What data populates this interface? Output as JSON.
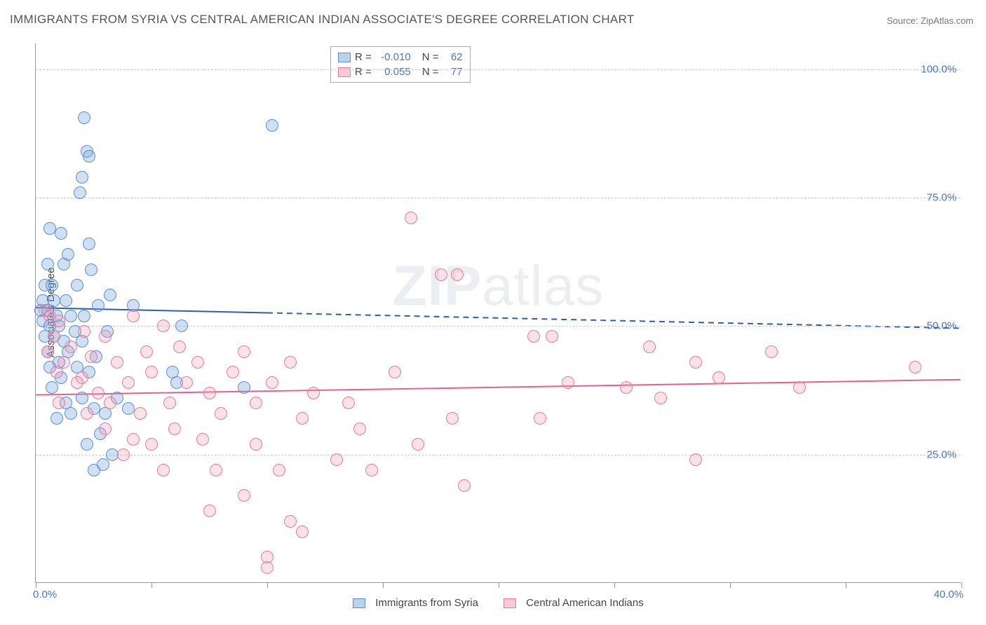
{
  "title": "IMMIGRANTS FROM SYRIA VS CENTRAL AMERICAN INDIAN ASSOCIATE'S DEGREE CORRELATION CHART",
  "source": "Source: ZipAtlas.com",
  "watermark_bold": "ZIP",
  "watermark_rest": "atlas",
  "y_axis_title": "Associate's Degree",
  "chart": {
    "type": "scatter",
    "xlim": [
      0,
      40
    ],
    "ylim": [
      0,
      105
    ],
    "x_ticks": [
      0,
      5,
      10,
      15,
      20,
      25,
      30,
      35,
      40
    ],
    "y_ticks": [
      25,
      50,
      75,
      100
    ],
    "y_tick_labels": [
      "25.0%",
      "50.0%",
      "75.0%",
      "100.0%"
    ],
    "x_label_min": "0.0%",
    "x_label_max": "40.0%",
    "background_color": "#ffffff",
    "grid_color": "#cccccc",
    "axis_color": "#999999",
    "marker_radius": 9,
    "series": [
      {
        "name": "Immigrants from Syria",
        "color_fill": "rgba(120,165,220,0.35)",
        "color_stroke": "#5c8fd6",
        "trend": {
          "y_start": 53.5,
          "y_end": 49.5,
          "solid_until_x": 10,
          "stroke": "#2b5fb0",
          "width": 2
        },
        "legend_top": {
          "r_label": "R =",
          "r_value": "-0.010",
          "n_label": "N =",
          "n_value": "62"
        },
        "points": [
          [
            2.1,
            90.5
          ],
          [
            10.2,
            89
          ],
          [
            2.2,
            84
          ],
          [
            2.3,
            83
          ],
          [
            2.0,
            79
          ],
          [
            1.9,
            76
          ],
          [
            0.6,
            69
          ],
          [
            1.1,
            68
          ],
          [
            2.3,
            66
          ],
          [
            1.4,
            64
          ],
          [
            0.5,
            62
          ],
          [
            1.2,
            62
          ],
          [
            2.4,
            61
          ],
          [
            0.4,
            58
          ],
          [
            0.7,
            58
          ],
          [
            1.8,
            58
          ],
          [
            3.2,
            56
          ],
          [
            0.3,
            55
          ],
          [
            0.8,
            55
          ],
          [
            1.3,
            55
          ],
          [
            2.7,
            54
          ],
          [
            4.2,
            54
          ],
          [
            0.2,
            53
          ],
          [
            0.5,
            53
          ],
          [
            0.9,
            52
          ],
          [
            1.5,
            52
          ],
          [
            2.1,
            52
          ],
          [
            0.3,
            51
          ],
          [
            0.6,
            50
          ],
          [
            1.0,
            50
          ],
          [
            1.7,
            49
          ],
          [
            3.1,
            49
          ],
          [
            6.3,
            50
          ],
          [
            0.4,
            48
          ],
          [
            0.8,
            48
          ],
          [
            1.2,
            47
          ],
          [
            2.0,
            47
          ],
          [
            0.5,
            45
          ],
          [
            1.4,
            45
          ],
          [
            2.6,
            44
          ],
          [
            1.0,
            43
          ],
          [
            0.6,
            42
          ],
          [
            1.8,
            42
          ],
          [
            2.3,
            41
          ],
          [
            5.9,
            41
          ],
          [
            1.1,
            40
          ],
          [
            0.7,
            38
          ],
          [
            6.1,
            39
          ],
          [
            2.0,
            36
          ],
          [
            9.0,
            38
          ],
          [
            3.5,
            36
          ],
          [
            1.3,
            35
          ],
          [
            2.5,
            34
          ],
          [
            4.0,
            34
          ],
          [
            1.5,
            33
          ],
          [
            0.9,
            32
          ],
          [
            3.0,
            33
          ],
          [
            2.8,
            29
          ],
          [
            2.2,
            27
          ],
          [
            3.3,
            25
          ],
          [
            2.5,
            22
          ],
          [
            2.9,
            23
          ]
        ]
      },
      {
        "name": "Central American Indians",
        "color_fill": "rgba(240,150,170,0.28)",
        "color_stroke": "#e97aa0",
        "trend": {
          "y_start": 36.5,
          "y_end": 39.5,
          "solid_until_x": 40,
          "stroke": "#e85f8e",
          "width": 2
        },
        "legend_top": {
          "r_label": "R =",
          "r_value": "0.055",
          "n_label": "N =",
          "n_value": "77"
        },
        "points": [
          [
            16.2,
            71
          ],
          [
            17.5,
            60
          ],
          [
            18.2,
            60
          ],
          [
            0.4,
            53
          ],
          [
            0.6,
            52
          ],
          [
            1.0,
            51
          ],
          [
            4.2,
            52
          ],
          [
            2.1,
            49
          ],
          [
            5.5,
            50
          ],
          [
            0.8,
            48
          ],
          [
            3.0,
            48
          ],
          [
            21.5,
            48
          ],
          [
            22.3,
            48
          ],
          [
            1.5,
            46
          ],
          [
            6.2,
            46
          ],
          [
            26.5,
            46
          ],
          [
            0.5,
            45
          ],
          [
            2.4,
            44
          ],
          [
            4.8,
            45
          ],
          [
            9.0,
            45
          ],
          [
            31.8,
            45
          ],
          [
            1.2,
            43
          ],
          [
            3.5,
            43
          ],
          [
            7.0,
            43
          ],
          [
            11.0,
            43
          ],
          [
            28.5,
            43
          ],
          [
            0.9,
            41
          ],
          [
            2.0,
            40
          ],
          [
            5.0,
            41
          ],
          [
            8.5,
            41
          ],
          [
            15.5,
            41
          ],
          [
            29.5,
            40
          ],
          [
            38.0,
            42
          ],
          [
            1.8,
            39
          ],
          [
            4.0,
            39
          ],
          [
            6.5,
            39
          ],
          [
            10.2,
            39
          ],
          [
            23.0,
            39
          ],
          [
            25.5,
            38
          ],
          [
            33.0,
            38
          ],
          [
            2.7,
            37
          ],
          [
            7.5,
            37
          ],
          [
            12.0,
            37
          ],
          [
            27.0,
            36
          ],
          [
            1.0,
            35
          ],
          [
            3.2,
            35
          ],
          [
            5.8,
            35
          ],
          [
            9.5,
            35
          ],
          [
            13.5,
            35
          ],
          [
            2.2,
            33
          ],
          [
            4.5,
            33
          ],
          [
            8.0,
            33
          ],
          [
            11.5,
            32
          ],
          [
            18.0,
            32
          ],
          [
            21.8,
            32
          ],
          [
            3.0,
            30
          ],
          [
            6.0,
            30
          ],
          [
            14.0,
            30
          ],
          [
            4.2,
            28
          ],
          [
            7.2,
            28
          ],
          [
            5.0,
            27
          ],
          [
            9.5,
            27
          ],
          [
            16.5,
            27
          ],
          [
            3.8,
            25
          ],
          [
            13.0,
            24
          ],
          [
            28.5,
            24
          ],
          [
            5.5,
            22
          ],
          [
            7.8,
            22
          ],
          [
            10.5,
            22
          ],
          [
            14.5,
            22
          ],
          [
            18.5,
            19
          ],
          [
            9.0,
            17
          ],
          [
            7.5,
            14
          ],
          [
            11.0,
            12
          ],
          [
            11.5,
            10
          ],
          [
            10.0,
            5
          ],
          [
            10.0,
            3
          ]
        ]
      }
    ]
  },
  "legend_bottom": {
    "label1": "Immigrants from Syria",
    "label2": "Central American Indians"
  }
}
